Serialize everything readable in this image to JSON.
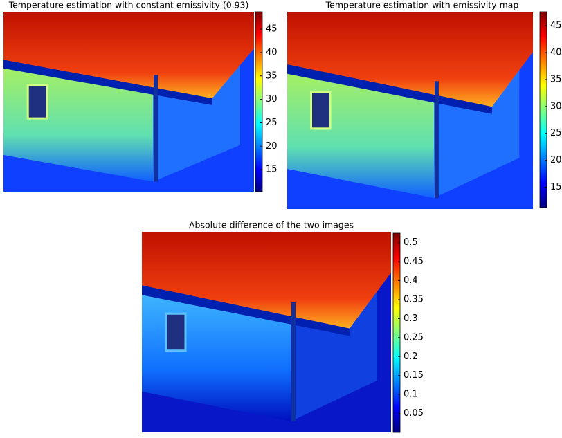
{
  "chart_data": [
    {
      "type": "image",
      "title": "Temperature estimation with constant emissivity (0.93)",
      "clim": [
        10.3,
        48.7
      ],
      "cticks": [
        15,
        20,
        25,
        30,
        35,
        40,
        45
      ]
    },
    {
      "type": "image",
      "title": "Temperature estimation with emissivity map",
      "clim": [
        11.2,
        47.6
      ],
      "cticks": [
        15,
        20,
        25,
        30,
        35,
        40,
        45
      ]
    },
    {
      "type": "image",
      "title": "Absolute difference of the two images",
      "clim": [
        0,
        0.525
      ],
      "cticks": [
        0.05,
        0.1,
        0.15,
        0.2,
        0.25,
        0.3,
        0.35,
        0.4,
        0.45,
        0.5
      ]
    }
  ]
}
